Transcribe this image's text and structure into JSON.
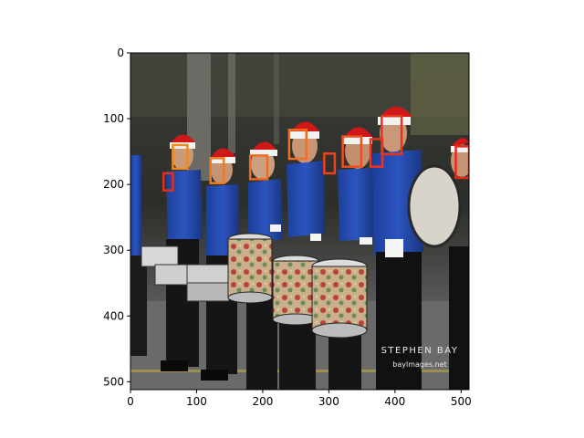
{
  "axes": {
    "xlim": [
      0,
      512
    ],
    "ylim": [
      512,
      0
    ],
    "x_ticks": [
      0,
      100,
      200,
      300,
      400,
      500
    ],
    "y_ticks": [
      0,
      100,
      200,
      300,
      400,
      500
    ]
  },
  "image": {
    "subject": "marching band drumline in blue uniforms and santa hats",
    "watermark_line1": "STEPHEN BAY",
    "watermark_line2": "baylmages.net"
  },
  "detections": [
    {
      "x": 50,
      "y": 183,
      "w": 14,
      "h": 26,
      "color": "#e03020"
    },
    {
      "x": 64,
      "y": 140,
      "w": 22,
      "h": 36,
      "color": "#f08a20"
    },
    {
      "x": 121,
      "y": 160,
      "w": 20,
      "h": 38,
      "color": "#f07a20"
    },
    {
      "x": 181,
      "y": 156,
      "w": 26,
      "h": 36,
      "color": "#f06a20"
    },
    {
      "x": 240,
      "y": 117,
      "w": 26,
      "h": 44,
      "color": "#f07020"
    },
    {
      "x": 293,
      "y": 153,
      "w": 16,
      "h": 30,
      "color": "#f04020"
    },
    {
      "x": 321,
      "y": 127,
      "w": 28,
      "h": 46,
      "color": "#f05020"
    },
    {
      "x": 363,
      "y": 131,
      "w": 18,
      "h": 42,
      "color": "#f03020"
    },
    {
      "x": 380,
      "y": 96,
      "w": 30,
      "h": 58,
      "color": "#e8341c"
    },
    {
      "x": 492,
      "y": 142,
      "w": 20,
      "h": 48,
      "color": "#e82818"
    }
  ]
}
